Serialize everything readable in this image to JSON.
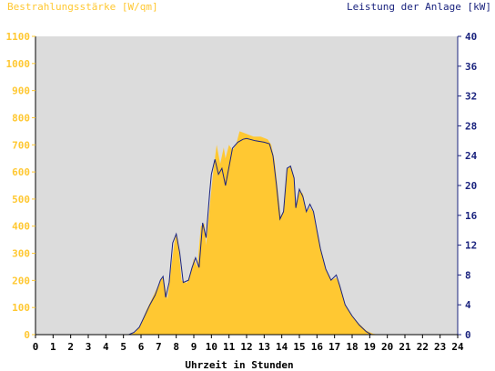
{
  "left_axis_title": "Bestrahlungsstärke [W/qm]",
  "right_axis_title": "Leistung der Anlage [kW]",
  "x_axis_title": "Uhrzeit in Stunden",
  "colors": {
    "irradiance_fill": "#FFC832",
    "power_line": "#1A237E",
    "plot_background": "#DCDCDC",
    "left_axis_text": "#FFC832",
    "right_axis_text": "#1A237E",
    "x_axis_text": "#000000"
  },
  "chart_data": {
    "type": "area",
    "xlabel": "Uhrzeit in Stunden",
    "xlim": [
      0,
      24
    ],
    "x_ticks": [
      "0",
      "1",
      "2",
      "3",
      "4",
      "5",
      "6",
      "7",
      "8",
      "9",
      "10",
      "11",
      "12",
      "13",
      "14",
      "15",
      "16",
      "17",
      "18",
      "19",
      "20",
      "21",
      "22",
      "23",
      "24"
    ],
    "y_left": {
      "label": "Bestrahlungsstärke [W/qm]",
      "lim": [
        0,
        1100
      ],
      "ticks": [
        "0",
        "100",
        "200",
        "300",
        "400",
        "500",
        "600",
        "700",
        "800",
        "900",
        "1000",
        "1100"
      ]
    },
    "y_right": {
      "label": "Leistung der Anlage [kW]",
      "lim": [
        0,
        40
      ],
      "ticks": [
        "0",
        "4",
        "8",
        "12",
        "16",
        "20",
        "24",
        "28",
        "32",
        "36",
        "40"
      ]
    },
    "grid": false,
    "series": [
      {
        "name": "Bestrahlungsstärke [W/qm]",
        "axis": "left",
        "style": "area",
        "points": [
          [
            0,
            0
          ],
          [
            5.4,
            0
          ],
          [
            5.7,
            10
          ],
          [
            6,
            40
          ],
          [
            6.3,
            90
          ],
          [
            6.6,
            130
          ],
          [
            6.9,
            170
          ],
          [
            7.2,
            210
          ],
          [
            7.3,
            200
          ],
          [
            7.5,
            130
          ],
          [
            7.7,
            240
          ],
          [
            7.9,
            340
          ],
          [
            8,
            370
          ],
          [
            8.1,
            350
          ],
          [
            8.3,
            200
          ],
          [
            8.6,
            190
          ],
          [
            8.8,
            220
          ],
          [
            9,
            280
          ],
          [
            9.2,
            250
          ],
          [
            9.4,
            400
          ],
          [
            9.6,
            410
          ],
          [
            9.7,
            330
          ],
          [
            9.9,
            470
          ],
          [
            10.1,
            600
          ],
          [
            10.3,
            700
          ],
          [
            10.5,
            630
          ],
          [
            10.7,
            690
          ],
          [
            10.8,
            650
          ],
          [
            11,
            700
          ],
          [
            11.2,
            680
          ],
          [
            11.4,
            700
          ],
          [
            11.6,
            750
          ],
          [
            12,
            740
          ],
          [
            12.4,
            730
          ],
          [
            12.8,
            730
          ],
          [
            13.2,
            720
          ],
          [
            13.4,
            700
          ],
          [
            13.6,
            640
          ],
          [
            13.8,
            520
          ],
          [
            13.95,
            430
          ],
          [
            14.1,
            460
          ],
          [
            14.3,
            610
          ],
          [
            14.5,
            620
          ],
          [
            14.7,
            580
          ],
          [
            14.8,
            470
          ],
          [
            15,
            530
          ],
          [
            15.2,
            520
          ],
          [
            15.4,
            450
          ],
          [
            15.6,
            470
          ],
          [
            15.8,
            450
          ],
          [
            16,
            390
          ],
          [
            16.2,
            320
          ],
          [
            16.5,
            240
          ],
          [
            16.8,
            200
          ],
          [
            17.1,
            210
          ],
          [
            17.3,
            180
          ],
          [
            17.6,
            110
          ],
          [
            18,
            70
          ],
          [
            18.4,
            40
          ],
          [
            18.8,
            15
          ],
          [
            19.2,
            3
          ],
          [
            19.5,
            0
          ],
          [
            24,
            0
          ]
        ]
      },
      {
        "name": "Leistung der Anlage [kW]",
        "axis": "right",
        "style": "line",
        "points": [
          [
            0,
            0
          ],
          [
            5.3,
            0
          ],
          [
            5.6,
            0.3
          ],
          [
            5.9,
            1
          ],
          [
            6.2,
            2.5
          ],
          [
            6.5,
            4
          ],
          [
            6.8,
            5.3
          ],
          [
            7.1,
            7.3
          ],
          [
            7.25,
            7.8
          ],
          [
            7.4,
            5
          ],
          [
            7.6,
            7
          ],
          [
            7.8,
            12.3
          ],
          [
            8,
            13.5
          ],
          [
            8.2,
            11
          ],
          [
            8.4,
            7
          ],
          [
            8.7,
            7.3
          ],
          [
            8.9,
            9
          ],
          [
            9.1,
            10.3
          ],
          [
            9.3,
            9
          ],
          [
            9.5,
            15
          ],
          [
            9.7,
            13
          ],
          [
            9.9,
            19
          ],
          [
            10,
            21.5
          ],
          [
            10.2,
            23.5
          ],
          [
            10.4,
            21.5
          ],
          [
            10.6,
            22.3
          ],
          [
            10.8,
            20
          ],
          [
            11.0,
            22.5
          ],
          [
            11.2,
            25
          ],
          [
            11.5,
            25.8
          ],
          [
            11.8,
            26.2
          ],
          [
            12,
            26.3
          ],
          [
            12.5,
            26
          ],
          [
            13,
            25.8
          ],
          [
            13.3,
            25.6
          ],
          [
            13.5,
            24
          ],
          [
            13.7,
            20
          ],
          [
            13.9,
            15.5
          ],
          [
            14.1,
            16.5
          ],
          [
            14.3,
            22.3
          ],
          [
            14.5,
            22.6
          ],
          [
            14.7,
            21
          ],
          [
            14.8,
            17
          ],
          [
            15,
            19.5
          ],
          [
            15.2,
            18.5
          ],
          [
            15.4,
            16.5
          ],
          [
            15.6,
            17.5
          ],
          [
            15.8,
            16.5
          ],
          [
            16,
            14
          ],
          [
            16.2,
            11.5
          ],
          [
            16.5,
            8.8
          ],
          [
            16.8,
            7.3
          ],
          [
            17.1,
            8
          ],
          [
            17.3,
            6.5
          ],
          [
            17.6,
            4
          ],
          [
            18,
            2.5
          ],
          [
            18.4,
            1.3
          ],
          [
            18.8,
            0.4
          ],
          [
            19.1,
            0
          ],
          [
            24,
            0
          ]
        ]
      }
    ]
  }
}
